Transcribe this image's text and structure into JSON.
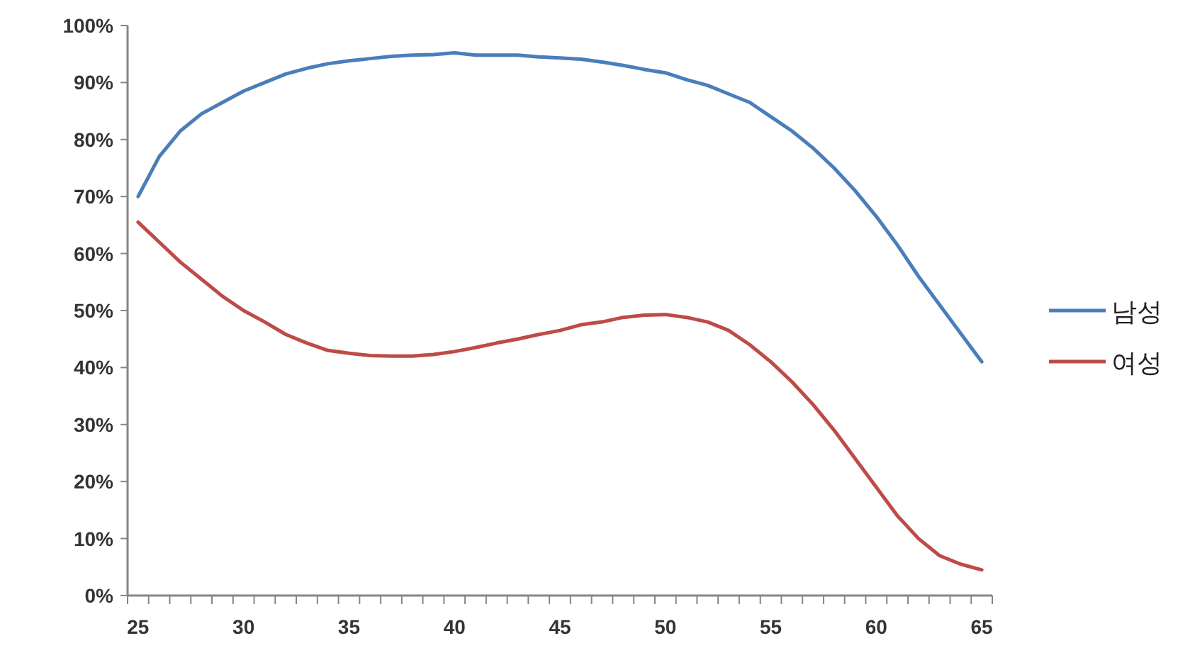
{
  "chart_data": {
    "type": "line",
    "categories": [
      "25",
      null,
      null,
      null,
      null,
      "30",
      null,
      null,
      null,
      null,
      "35",
      null,
      null,
      null,
      null,
      "40",
      null,
      null,
      null,
      null,
      "45",
      null,
      null,
      null,
      null,
      "50",
      null,
      null,
      null,
      null,
      "55",
      null,
      null,
      null,
      null,
      "60",
      null,
      null,
      null,
      null,
      "65"
    ],
    "series": [
      {
        "name": "남성",
        "color": "#4a7ebb",
        "values": [
          70,
          77,
          81.5,
          84.5,
          86.5,
          88.5,
          90,
          91.5,
          92.5,
          93.3,
          93.8,
          94.2,
          94.6,
          94.8,
          94.9,
          95.2,
          94.8,
          94.8,
          94.8,
          94.5,
          94.3,
          94.1,
          93.6,
          93,
          92.3,
          91.7,
          90.5,
          89.5,
          88,
          86.5,
          84,
          81.5,
          78.5,
          75,
          71,
          66.5,
          61.5,
          56,
          51,
          46,
          41
        ]
      },
      {
        "name": "여성",
        "color": "#be4b48",
        "values": [
          65.5,
          62,
          58.5,
          55.5,
          52.5,
          50,
          48,
          45.8,
          44.3,
          43,
          42.5,
          42.1,
          42,
          42,
          42.3,
          42.8,
          43.5,
          44.3,
          45,
          45.8,
          46.5,
          47.5,
          48,
          48.8,
          49.2,
          49.3,
          48.8,
          48,
          46.5,
          44,
          41,
          37.5,
          33.5,
          29,
          24,
          19,
          14,
          10,
          7,
          5.5,
          4.5
        ]
      }
    ],
    "ylim": [
      0,
      100
    ],
    "yticks": [
      {
        "value": 0,
        "label": "0%"
      },
      {
        "value": 10,
        "label": "10%"
      },
      {
        "value": 20,
        "label": "20%"
      },
      {
        "value": 30,
        "label": "30%"
      },
      {
        "value": 40,
        "label": "40%"
      },
      {
        "value": 50,
        "label": "50%"
      },
      {
        "value": 60,
        "label": "60%"
      },
      {
        "value": 70,
        "label": "70%"
      },
      {
        "value": 80,
        "label": "80%"
      },
      {
        "value": 90,
        "label": "90%"
      },
      {
        "value": 100,
        "label": "100%"
      }
    ],
    "legend": "right",
    "grid": false
  }
}
